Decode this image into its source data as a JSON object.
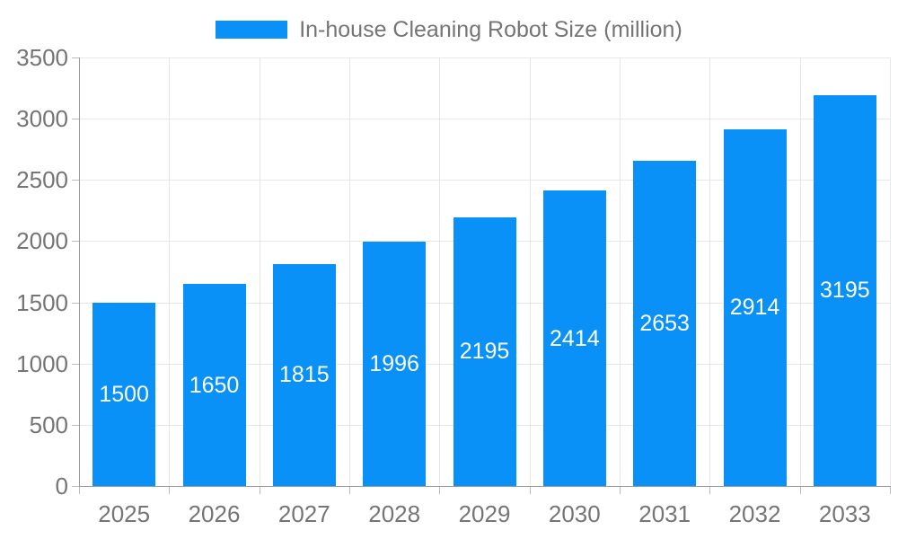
{
  "chart_data": {
    "type": "bar",
    "title": "In-house Cleaning Robot Size (million)",
    "series_name": "In-house Cleaning Robot Size (million)",
    "categories": [
      "2025",
      "2026",
      "2027",
      "2028",
      "2029",
      "2030",
      "2031",
      "2032",
      "2033"
    ],
    "values": [
      1500,
      1650,
      1815,
      1996,
      2195,
      2414,
      2653,
      2914,
      3195
    ],
    "xlabel": "",
    "ylabel": "",
    "ylim": [
      0,
      3500
    ],
    "ytick_step": 500,
    "yticks": [
      0,
      500,
      1000,
      1500,
      2000,
      2500,
      3000,
      3500
    ],
    "grid": true,
    "legend_position": "top-center",
    "value_labels": "inside-bar-centered",
    "colors": {
      "bar": "#0991f8",
      "bar_label_text": "#ffffff",
      "grid_line": "#e7e7e7",
      "axis_line": "#999999",
      "tick_mark": "#bcbcbc",
      "axis_text": "#757575",
      "legend_text": "#757575"
    }
  }
}
